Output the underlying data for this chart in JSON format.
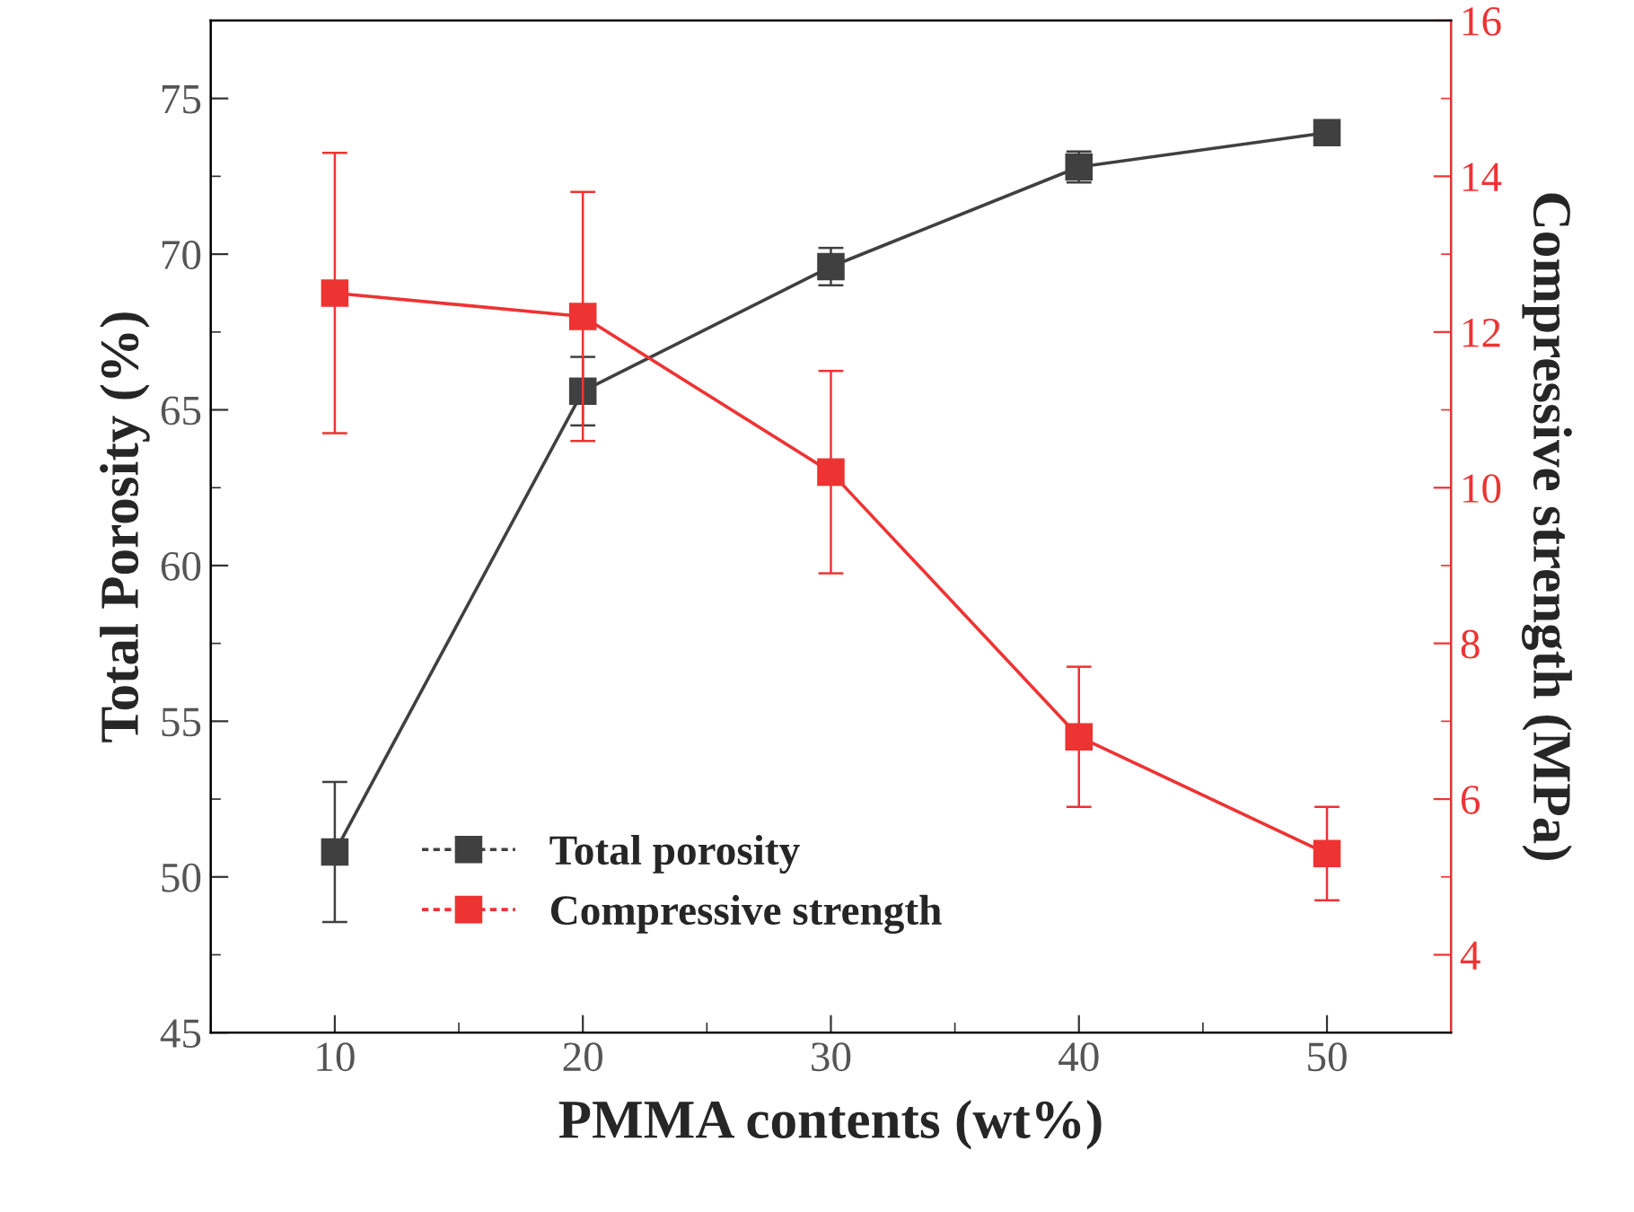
{
  "chart_data": {
    "type": "line",
    "xlabel": "PMMA contents (wt%)",
    "ylabel": "Total Porosity (%)",
    "y2label": "Compressive strength (MPa)",
    "x": [
      10,
      20,
      30,
      40,
      50
    ],
    "series": [
      {
        "name": "Total porosity",
        "color": "#404040",
        "values": [
          50.8,
          65.6,
          69.6,
          72.8,
          73.9
        ],
        "errors": [
          2.25,
          1.1,
          0.6,
          0.5,
          null
        ]
      },
      {
        "name": "Compressive strength",
        "color": "#ee3333",
        "axis": "y2",
        "values": [
          12.5,
          12.2,
          10.2,
          6.8,
          5.3
        ],
        "errors": [
          1.8,
          1.6,
          1.3,
          0.9,
          0.6
        ]
      }
    ],
    "xlim": [
      5,
      55
    ],
    "xticks": [
      10,
      20,
      30,
      40,
      50
    ],
    "ylim": [
      45,
      77.5
    ],
    "yticks": [
      45,
      50,
      55,
      60,
      65,
      70,
      75
    ],
    "y2lim": [
      3,
      16
    ],
    "y2ticks": [
      4,
      6,
      8,
      10,
      12,
      14,
      16
    ],
    "marker": "square",
    "line_style": "solid",
    "grid": false,
    "legend": "bottom"
  }
}
